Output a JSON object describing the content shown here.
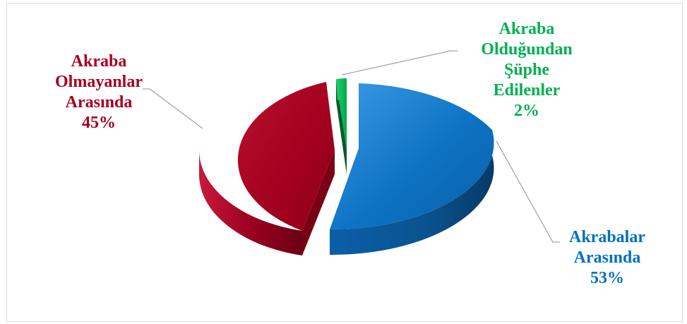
{
  "chart_data": {
    "type": "pie",
    "style": "3d-exploded",
    "title": "",
    "slices": [
      {
        "key": "akrabalar",
        "label_lines": [
          "Akrabalar",
          "Arasında"
        ],
        "value_label": "53%",
        "value": 53,
        "color": "#0070c0"
      },
      {
        "key": "olmayanlar",
        "label_lines": [
          "Akraba",
          "Olmayanlar",
          "Arasında"
        ],
        "value_label": "45%",
        "value": 45,
        "color": "#a50021"
      },
      {
        "key": "suphe",
        "label_lines": [
          "Akraba",
          "Olduğundan",
          "Şüphe",
          "Edilenler"
        ],
        "value_label": "2%",
        "value": 2,
        "color": "#00b050"
      }
    ]
  }
}
